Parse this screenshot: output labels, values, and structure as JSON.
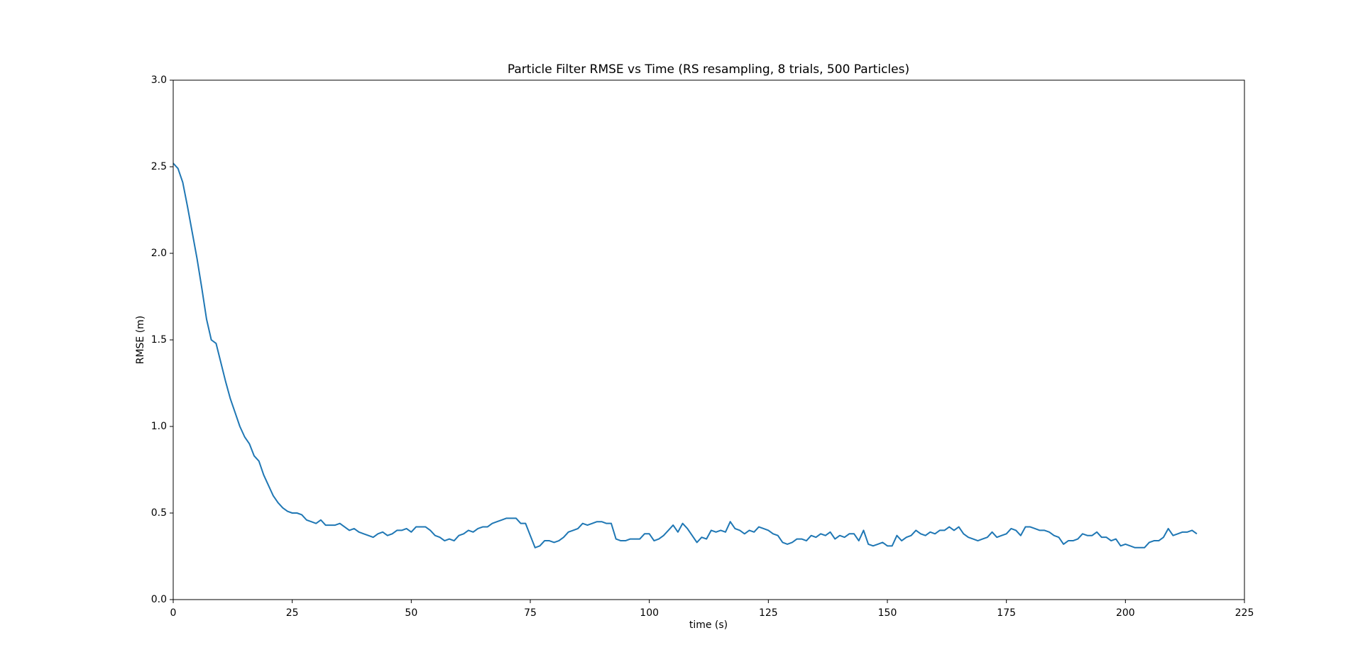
{
  "chart_data": {
    "type": "line",
    "title": "Particle Filter RMSE vs Time (RS resampling, 8 trials, 500 Particles)",
    "x_label": "time (s)",
    "y_label": "RMSE (m)",
    "x": [
      0,
      1,
      2,
      3,
      4,
      5,
      6,
      7,
      8,
      9,
      10,
      11,
      12,
      13,
      14,
      15,
      16,
      17,
      18,
      19,
      20,
      21,
      22,
      23,
      24,
      25,
      26,
      27,
      28,
      29,
      30,
      31,
      32,
      33,
      34,
      35,
      36,
      37,
      38,
      39,
      40,
      41,
      42,
      43,
      44,
      45,
      46,
      47,
      48,
      49,
      50,
      51,
      52,
      53,
      54,
      55,
      56,
      57,
      58,
      59,
      60,
      61,
      62,
      63,
      64,
      65,
      66,
      67,
      68,
      69,
      70,
      71,
      72,
      73,
      74,
      75,
      76,
      77,
      78,
      79,
      80,
      81,
      82,
      83,
      84,
      85,
      86,
      87,
      88,
      89,
      90,
      91,
      92,
      93,
      94,
      95,
      96,
      97,
      98,
      99,
      100,
      101,
      102,
      103,
      104,
      105,
      106,
      107,
      108,
      109,
      110,
      111,
      112,
      113,
      114,
      115,
      116,
      117,
      118,
      119,
      120,
      121,
      122,
      123,
      124,
      125,
      126,
      127,
      128,
      129,
      130,
      131,
      132,
      133,
      134,
      135,
      136,
      137,
      138,
      139,
      140,
      141,
      142,
      143,
      144,
      145,
      146,
      147,
      148,
      149,
      150,
      151,
      152,
      153,
      154,
      155,
      156,
      157,
      158,
      159,
      160,
      161,
      162,
      163,
      164,
      165,
      166,
      167,
      168,
      169,
      170,
      171,
      172,
      173,
      174,
      175,
      176,
      177,
      178,
      179,
      180,
      181,
      182,
      183,
      184,
      185,
      186,
      187,
      188,
      189,
      190,
      191,
      192,
      193,
      194,
      195,
      196,
      197,
      198,
      199,
      200,
      201,
      202,
      203,
      204,
      205,
      206,
      207,
      208,
      209,
      210,
      211,
      212,
      213,
      214,
      215
    ],
    "series": [
      {
        "color": "#1f77b4",
        "values": [
          2.52,
          2.49,
          2.41,
          2.27,
          2.12,
          1.97,
          1.8,
          1.62,
          1.5,
          1.48,
          1.37,
          1.26,
          1.16,
          1.08,
          1.0,
          0.94,
          0.9,
          0.83,
          0.8,
          0.72,
          0.66,
          0.6,
          0.56,
          0.53,
          0.51,
          0.5,
          0.5,
          0.49,
          0.46,
          0.45,
          0.44,
          0.46,
          0.43,
          0.43,
          0.43,
          0.44,
          0.42,
          0.4,
          0.41,
          0.39,
          0.38,
          0.37,
          0.36,
          0.38,
          0.39,
          0.37,
          0.38,
          0.4,
          0.4,
          0.41,
          0.39,
          0.42,
          0.42,
          0.42,
          0.4,
          0.37,
          0.36,
          0.34,
          0.35,
          0.34,
          0.37,
          0.38,
          0.4,
          0.39,
          0.41,
          0.42,
          0.42,
          0.44,
          0.45,
          0.46,
          0.47,
          0.47,
          0.47,
          0.44,
          0.44,
          0.37,
          0.3,
          0.31,
          0.34,
          0.34,
          0.33,
          0.34,
          0.36,
          0.39,
          0.4,
          0.41,
          0.44,
          0.43,
          0.44,
          0.45,
          0.45,
          0.44,
          0.44,
          0.35,
          0.34,
          0.34,
          0.35,
          0.35,
          0.35,
          0.38,
          0.38,
          0.34,
          0.35,
          0.37,
          0.4,
          0.43,
          0.39,
          0.44,
          0.41,
          0.37,
          0.33,
          0.36,
          0.35,
          0.4,
          0.39,
          0.4,
          0.39,
          0.45,
          0.41,
          0.4,
          0.38,
          0.4,
          0.39,
          0.42,
          0.41,
          0.4,
          0.38,
          0.37,
          0.33,
          0.32,
          0.33,
          0.35,
          0.35,
          0.34,
          0.37,
          0.36,
          0.38,
          0.37,
          0.39,
          0.35,
          0.37,
          0.36,
          0.38,
          0.38,
          0.34,
          0.4,
          0.32,
          0.31,
          0.32,
          0.33,
          0.31,
          0.31,
          0.37,
          0.34,
          0.36,
          0.37,
          0.4,
          0.38,
          0.37,
          0.39,
          0.38,
          0.4,
          0.4,
          0.42,
          0.4,
          0.42,
          0.38,
          0.36,
          0.35,
          0.34,
          0.35,
          0.36,
          0.39,
          0.36,
          0.37,
          0.38,
          0.41,
          0.4,
          0.37,
          0.42,
          0.42,
          0.41,
          0.4,
          0.4,
          0.39,
          0.37,
          0.36,
          0.32,
          0.34,
          0.34,
          0.35,
          0.38,
          0.37,
          0.37,
          0.39,
          0.36,
          0.36,
          0.34,
          0.35,
          0.31,
          0.32,
          0.31,
          0.3,
          0.3,
          0.3,
          0.33,
          0.34,
          0.34,
          0.36,
          0.41,
          0.37,
          0.38,
          0.39,
          0.39,
          0.4,
          0.38
        ]
      }
    ],
    "xlim": [
      0,
      225
    ],
    "xticks": [
      0,
      25,
      50,
      75,
      100,
      125,
      150,
      175,
      200,
      225
    ],
    "ylim": [
      0,
      3
    ],
    "yticks": [
      {
        "value": 0,
        "label": "0.0"
      },
      0.5,
      {
        "value": 1,
        "label": "1.0"
      },
      1.5,
      {
        "value": 2,
        "label": "2.0"
      },
      2.5,
      {
        "value": 3,
        "label": "3.0"
      }
    ]
  }
}
